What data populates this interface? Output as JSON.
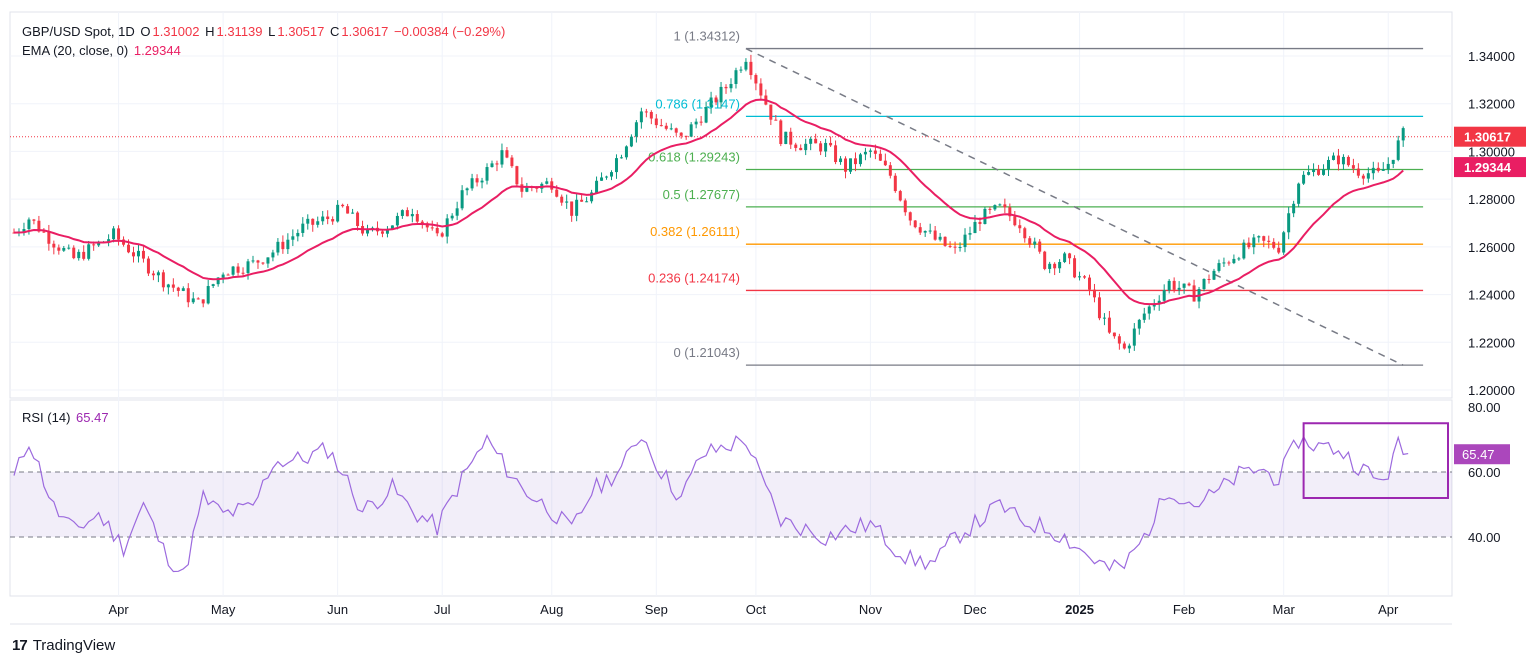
{
  "legend": {
    "symbol": "GBP/USD Spot, 1D",
    "open_label": "O",
    "open": "1.31002",
    "high_label": "H",
    "high": "1.31139",
    "low_label": "L",
    "low": "1.30517",
    "close_label": "C",
    "close": "1.30617",
    "change": "−0.00384 (−0.29%)",
    "ema_label": "EMA (20, close, 0)",
    "ema_value": "1.29344",
    "rsi_label": "RSI (14)",
    "rsi_value": "65.47"
  },
  "branding": {
    "name": "TradingView"
  },
  "colors": {
    "up": "#089981",
    "down": "#f23645",
    "ema": "#e91e63",
    "rsi": "#9c6ade",
    "box": "#9c27b0"
  },
  "chart_data": [
    {
      "type": "candlestick",
      "title": "GBP/USD Spot, 1D",
      "ylim": [
        1.2,
        1.35
      ],
      "yticks": [
        "1.34000",
        "1.32000",
        "1.30000",
        "1.28000",
        "1.26000",
        "1.24000",
        "1.22000",
        "1.20000"
      ],
      "ytick_values": [
        1.34,
        1.32,
        1.3,
        1.28,
        1.26,
        1.24,
        1.22,
        1.2
      ],
      "x_labels": [
        "Apr",
        "May",
        "Jun",
        "Jul",
        "Aug",
        "Sep",
        "Oct",
        "Nov",
        "Dec",
        "2025",
        "Feb",
        "Mar",
        "Apr"
      ],
      "x_label_days": [
        21,
        42,
        65,
        86,
        108,
        129,
        149,
        172,
        193,
        214,
        235,
        255,
        276
      ],
      "total_days": 288,
      "price_keypoints": [
        [
          0,
          1.266
        ],
        [
          3,
          1.272
        ],
        [
          8,
          1.262
        ],
        [
          12,
          1.255
        ],
        [
          20,
          1.265
        ],
        [
          30,
          1.246
        ],
        [
          37,
          1.236
        ],
        [
          42,
          1.25
        ],
        [
          48,
          1.253
        ],
        [
          52,
          1.258
        ],
        [
          58,
          1.268
        ],
        [
          63,
          1.272
        ],
        [
          66,
          1.276
        ],
        [
          71,
          1.265
        ],
        [
          76,
          1.27
        ],
        [
          80,
          1.276
        ],
        [
          85,
          1.263
        ],
        [
          90,
          1.282
        ],
        [
          95,
          1.292
        ],
        [
          98,
          1.299
        ],
        [
          102,
          1.284
        ],
        [
          108,
          1.287
        ],
        [
          112,
          1.275
        ],
        [
          116,
          1.282
        ],
        [
          122,
          1.3
        ],
        [
          126,
          1.317
        ],
        [
          130,
          1.311
        ],
        [
          134,
          1.305
        ],
        [
          138,
          1.315
        ],
        [
          143,
          1.327
        ],
        [
          147,
          1.34
        ],
        [
          150,
          1.325
        ],
        [
          154,
          1.306
        ],
        [
          158,
          1.303
        ],
        [
          163,
          1.302
        ],
        [
          167,
          1.293
        ],
        [
          172,
          1.3
        ],
        [
          176,
          1.29
        ],
        [
          180,
          1.272
        ],
        [
          185,
          1.263
        ],
        [
          189,
          1.258
        ],
        [
          194,
          1.272
        ],
        [
          198,
          1.276
        ],
        [
          202,
          1.27
        ],
        [
          207,
          1.253
        ],
        [
          211,
          1.255
        ],
        [
          216,
          1.242
        ],
        [
          220,
          1.223
        ],
        [
          223,
          1.217
        ],
        [
          227,
          1.232
        ],
        [
          232,
          1.245
        ],
        [
          237,
          1.24
        ],
        [
          241,
          1.25
        ],
        [
          246,
          1.258
        ],
        [
          250,
          1.262
        ],
        [
          254,
          1.26
        ],
        [
          258,
          1.288
        ],
        [
          262,
          1.293
        ],
        [
          266,
          1.297
        ],
        [
          270,
          1.292
        ],
        [
          274,
          1.29
        ],
        [
          276,
          1.295
        ],
        [
          279,
          1.307
        ]
      ],
      "ema_last": 1.29344,
      "last_price": 1.30617,
      "fibonacci": [
        {
          "level": "1",
          "price": 1.34312,
          "label": "1 (1.34312)",
          "color": "#787b86"
        },
        {
          "level": "0.786",
          "price": 1.3147,
          "label": "0.786 (1.3147)",
          "color": "#00bcd4"
        },
        {
          "level": "0.618",
          "price": 1.29243,
          "label": "0.618 (1.29243)",
          "color": "#4caf50"
        },
        {
          "level": "0.5",
          "price": 1.27677,
          "label": "0.5 (1.27677)",
          "color": "#4caf50"
        },
        {
          "level": "0.382",
          "price": 1.26111,
          "label": "0.382 (1.26111)",
          "color": "#ff9800"
        },
        {
          "level": "0.236",
          "price": 1.24174,
          "label": "0.236 (1.24174)",
          "color": "#f23645"
        },
        {
          "level": "0",
          "price": 1.21043,
          "label": "0 (1.21043)",
          "color": "#787b86"
        }
      ],
      "fib_start_day": 147,
      "trendline": [
        [
          147,
          1.3431
        ],
        [
          279,
          1.2104
        ]
      ],
      "price_badges": [
        {
          "text": "1.30617",
          "value": 1.30617,
          "color": "#f23645"
        },
        {
          "text": "1.29344",
          "value": 1.29344,
          "color": "#e91e63"
        }
      ]
    },
    {
      "type": "line",
      "title": "RSI (14)",
      "ylim": [
        25,
        80
      ],
      "yticks": [
        "80.00",
        "60.00",
        "40.00"
      ],
      "ytick_values": [
        80,
        60,
        40
      ],
      "band": [
        40,
        60
      ],
      "last_value": 65.47,
      "rsi_keypoints": [
        [
          0,
          58
        ],
        [
          3,
          70
        ],
        [
          8,
          49
        ],
        [
          12,
          42
        ],
        [
          17,
          47
        ],
        [
          22,
          37
        ],
        [
          26,
          50
        ],
        [
          30,
          36
        ],
        [
          34,
          28
        ],
        [
          38,
          52
        ],
        [
          42,
          47
        ],
        [
          48,
          49
        ],
        [
          52,
          63
        ],
        [
          58,
          64
        ],
        [
          63,
          67
        ],
        [
          66,
          60
        ],
        [
          70,
          48
        ],
        [
          76,
          55
        ],
        [
          80,
          48
        ],
        [
          85,
          43
        ],
        [
          90,
          58
        ],
        [
          95,
          70
        ],
        [
          98,
          63
        ],
        [
          102,
          55
        ],
        [
          108,
          48
        ],
        [
          112,
          42
        ],
        [
          116,
          54
        ],
        [
          122,
          61
        ],
        [
          126,
          72
        ],
        [
          130,
          60
        ],
        [
          134,
          52
        ],
        [
          138,
          65
        ],
        [
          143,
          68
        ],
        [
          147,
          70
        ],
        [
          150,
          58
        ],
        [
          154,
          45
        ],
        [
          158,
          43
        ],
        [
          163,
          40
        ],
        [
          167,
          42
        ],
        [
          172,
          44
        ],
        [
          176,
          38
        ],
        [
          180,
          33
        ],
        [
          185,
          32
        ],
        [
          189,
          40
        ],
        [
          194,
          45
        ],
        [
          198,
          50
        ],
        [
          202,
          45
        ],
        [
          207,
          43
        ],
        [
          211,
          40
        ],
        [
          216,
          34
        ],
        [
          220,
          30
        ],
        [
          223,
          31
        ],
        [
          227,
          40
        ],
        [
          232,
          55
        ],
        [
          237,
          50
        ],
        [
          241,
          53
        ],
        [
          246,
          59
        ],
        [
          250,
          61
        ],
        [
          254,
          58
        ],
        [
          258,
          70
        ],
        [
          262,
          68
        ],
        [
          266,
          67
        ],
        [
          270,
          62
        ],
        [
          274,
          57
        ],
        [
          276,
          60
        ],
        [
          278,
          68
        ],
        [
          280,
          65
        ]
      ],
      "highlight_box": {
        "day_start": 259,
        "day_end": 288,
        "rsi_top": 75,
        "rsi_bottom": 52
      }
    }
  ]
}
